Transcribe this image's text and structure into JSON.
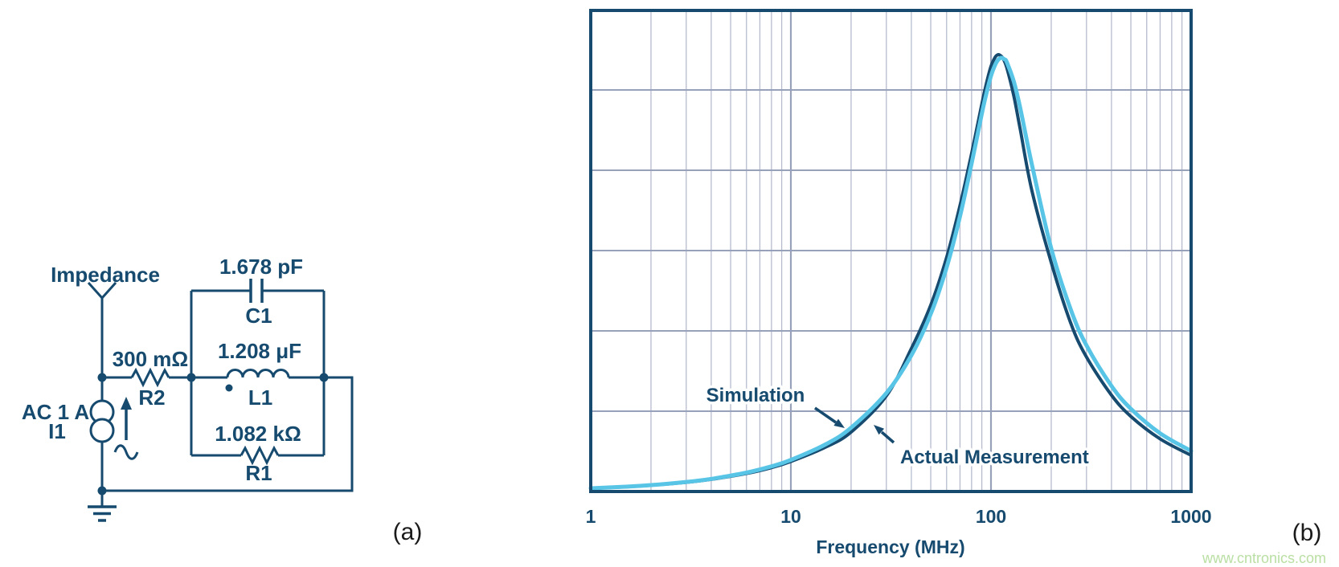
{
  "figure": {
    "type": "two-panel technical figure: RLC circuit model and impedance-vs-frequency plot"
  },
  "colors": {
    "navy": "#164A6E",
    "cyan": "#58C5E6",
    "grid_minor": "#B6BCCE",
    "grid_major": "#97A1BA",
    "watermark": "#B9DFA3",
    "caption": "#1A1A1A",
    "background": "#FFFFFF"
  },
  "panel_a": {
    "impedance_label": "Impedance",
    "ac_source_label": "AC 1 A",
    "ac_source_name": "I1",
    "r2_value": "300 mΩ",
    "r2_name": "R2",
    "c1_value": "1.678 pF",
    "c1_name": "C1",
    "l1_value": "1.208 μF",
    "l1_name": "L1",
    "r1_value": "1.082 kΩ",
    "r1_name": "R1",
    "caption": "(a)"
  },
  "panel_b": {
    "caption": "(b)",
    "watermark": "www.cntronics.com"
  },
  "chart_data": {
    "type": "line",
    "title": "",
    "xlabel": "Frequency (MHz)",
    "ylabel": "",
    "x_scale": "log",
    "y_scale": "linear",
    "xlim": [
      1,
      1000
    ],
    "x_ticks": [
      1,
      10,
      100,
      1000
    ],
    "ylim": [
      0,
      1198
    ],
    "y_grid_step": 200,
    "y_axis_labeled": false,
    "grid": true,
    "legend_position": "inline annotations with arrows",
    "series": [
      {
        "name": "Simulation",
        "color": "#58C5E6",
        "stroke_width": 5,
        "points": [
          [
            1,
            8.1
          ],
          [
            1.5,
            12.0
          ],
          [
            2,
            15.9
          ],
          [
            3,
            23.7
          ],
          [
            4,
            31.5
          ],
          [
            6,
            47
          ],
          [
            8,
            62.6
          ],
          [
            10,
            78.6
          ],
          [
            15,
            118
          ],
          [
            20,
            159
          ],
          [
            30,
            245
          ],
          [
            40,
            339
          ],
          [
            50,
            442
          ],
          [
            60,
            558
          ],
          [
            70,
            685
          ],
          [
            80,
            817
          ],
          [
            90,
            941
          ],
          [
            95,
            993
          ],
          [
            100,
            1035
          ],
          [
            105,
            1063
          ],
          [
            109,
            1076
          ],
          [
            113,
            1080
          ],
          [
            117,
            1076
          ],
          [
            120,
            1069
          ],
          [
            130,
            1021
          ],
          [
            140,
            955
          ],
          [
            160,
            815
          ],
          [
            200,
            605
          ],
          [
            250,
            454
          ],
          [
            300,
            364
          ],
          [
            400,
            263
          ],
          [
            500,
            206
          ],
          [
            700,
            145
          ],
          [
            1000,
            101
          ]
        ]
      },
      {
        "name": "Actual Measurement",
        "color": "#164A6E",
        "stroke_width": 4,
        "points": [
          [
            1,
            7.8
          ],
          [
            1.5,
            11.6
          ],
          [
            2,
            15.4
          ],
          [
            3,
            22.8
          ],
          [
            4,
            30.2
          ],
          [
            6,
            44.7
          ],
          [
            8,
            59.5
          ],
          [
            10,
            74.7
          ],
          [
            15,
            111
          ],
          [
            20,
            148
          ],
          [
            30,
            238
          ],
          [
            40,
            356
          ],
          [
            50,
            464
          ],
          [
            60,
            583
          ],
          [
            70,
            712
          ],
          [
            80,
            842
          ],
          [
            90,
            965
          ],
          [
            95,
            1018
          ],
          [
            100,
            1059
          ],
          [
            105,
            1082
          ],
          [
            107.5,
            1087
          ],
          [
            109.2,
            1088
          ],
          [
            112,
            1085
          ],
          [
            115,
            1078
          ],
          [
            120,
            1055
          ],
          [
            130,
            985
          ],
          [
            140,
            902
          ],
          [
            160,
            750
          ],
          [
            200,
            570
          ],
          [
            250,
            420
          ],
          [
            300,
            335
          ],
          [
            400,
            240
          ],
          [
            500,
            187
          ],
          [
            700,
            131
          ],
          [
            1000,
            90
          ]
        ]
      }
    ]
  }
}
